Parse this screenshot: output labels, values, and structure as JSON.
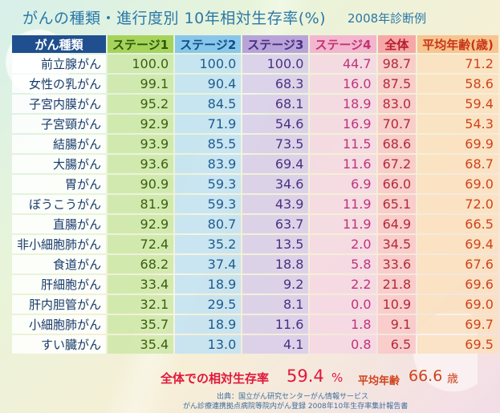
{
  "title": "がんの種類・進行度別 10年相対生存率(%)",
  "subtitle": "2008年診断例",
  "chart_data": {
    "type": "table",
    "columns": [
      "がん種類",
      "ステージ1",
      "ステージ2",
      "ステージ3",
      "ステージ4",
      "全体",
      "平均年齢(歳)"
    ],
    "rows": [
      {
        "name": "前立腺がん",
        "values": [
          "100.0",
          "100.0",
          "100.0",
          "44.7",
          "98.7",
          "71.2"
        ]
      },
      {
        "name": "女性の乳がん",
        "values": [
          "99.1",
          "90.4",
          "68.3",
          "16.0",
          "87.5",
          "58.6"
        ]
      },
      {
        "name": "子宮内膜がん",
        "values": [
          "95.2",
          "84.5",
          "68.1",
          "18.9",
          "83.0",
          "59.4"
        ]
      },
      {
        "name": "子宮頸がん",
        "values": [
          "92.9",
          "71.9",
          "54.6",
          "16.9",
          "70.7",
          "54.3"
        ]
      },
      {
        "name": "結腸がん",
        "values": [
          "93.9",
          "85.5",
          "73.5",
          "11.5",
          "68.6",
          "69.9"
        ]
      },
      {
        "name": "大腸がん",
        "values": [
          "93.6",
          "83.9",
          "69.4",
          "11.6",
          "67.2",
          "68.7"
        ]
      },
      {
        "name": "胃がん",
        "values": [
          "90.9",
          "59.3",
          "34.6",
          "6.9",
          "66.0",
          "69.0"
        ]
      },
      {
        "name": "ぼうこうがん",
        "values": [
          "81.9",
          "59.3",
          "43.9",
          "11.9",
          "65.1",
          "72.0"
        ]
      },
      {
        "name": "直腸がん",
        "values": [
          "92.9",
          "80.7",
          "63.7",
          "11.9",
          "64.9",
          "66.5"
        ]
      },
      {
        "name": "非小細胞肺がん",
        "values": [
          "72.4",
          "35.2",
          "13.5",
          "2.0",
          "34.5",
          "69.4"
        ]
      },
      {
        "name": "食道がん",
        "values": [
          "68.2",
          "37.4",
          "18.8",
          "5.8",
          "33.6",
          "67.6"
        ]
      },
      {
        "name": "肝細胞がん",
        "values": [
          "33.4",
          "18.9",
          "9.2",
          "2.2",
          "21.8",
          "69.6"
        ]
      },
      {
        "name": "肝内胆管がん",
        "values": [
          "32.1",
          "29.5",
          "8.1",
          "0.0",
          "10.9",
          "69.0"
        ]
      },
      {
        "name": "小細胞肺がん",
        "values": [
          "35.7",
          "18.9",
          "11.6",
          "1.8",
          "9.1",
          "69.7"
        ]
      },
      {
        "name": "すい臓がん",
        "values": [
          "35.4",
          "13.0",
          "4.1",
          "0.8",
          "6.5",
          "69.5"
        ]
      }
    ]
  },
  "summary": {
    "label": "全体での相対生存率",
    "value": "59.4",
    "unit": "%",
    "age_label": "平均年齢",
    "age_value": "66.6",
    "age_unit": "歳"
  },
  "source": {
    "line1": "出典：国立がん研究センターがん情報サービス",
    "line2": "がん診療連携拠点病院等院内がん登録 2008年10年生存率集計報告書"
  }
}
